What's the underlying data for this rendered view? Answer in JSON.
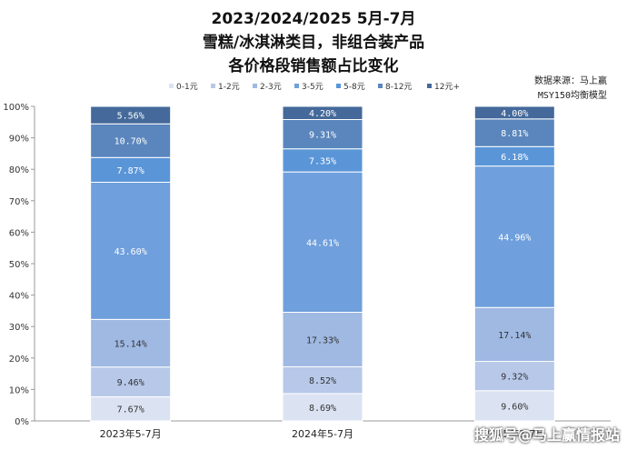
{
  "chart_data": {
    "type": "bar",
    "stacked": true,
    "title_lines": [
      "2023/2024/2025 5月-7月",
      "雪糕/冰淇淋类目，非组合装产品",
      "各价格段销售额占比变化"
    ],
    "source_lines": [
      "数据来源：马上赢",
      "MSY150均衡模型"
    ],
    "categories": [
      "2023年5-7月",
      "2024年5-7月",
      "2025年5-7月"
    ],
    "ylim": [
      0,
      100
    ],
    "yticks": [
      "0%",
      "10%",
      "20%",
      "30%",
      "40%",
      "50%",
      "60%",
      "70%",
      "80%",
      "90%",
      "100%"
    ],
    "legend_position": "top",
    "grid": false,
    "series": [
      {
        "name": "0-1元",
        "color": "#dbe3f3",
        "values": [
          7.67,
          8.69,
          9.6
        ],
        "labels": [
          "7.67%",
          "8.69%",
          "9.60%"
        ]
      },
      {
        "name": "1-2元",
        "color": "#b7c8e9",
        "values": [
          9.46,
          8.52,
          9.32
        ],
        "labels": [
          "9.46%",
          "8.52%",
          "9.32%"
        ]
      },
      {
        "name": "2-3元",
        "color": "#9fb9e3",
        "values": [
          15.14,
          17.33,
          17.14
        ],
        "labels": [
          "15.14%",
          "17.33%",
          "17.14%"
        ]
      },
      {
        "name": "3-5元",
        "color": "#6f9fdc",
        "values": [
          43.6,
          44.61,
          44.96
        ],
        "labels": [
          "43.60%",
          "44.61%",
          "44.96%"
        ]
      },
      {
        "name": "5-8元",
        "color": "#5a95d8",
        "values": [
          7.87,
          7.35,
          6.18
        ],
        "labels": [
          "7.87%",
          "7.35%",
          "6.18%"
        ]
      },
      {
        "name": "8-12元",
        "color": "#5a86bd",
        "values": [
          10.7,
          9.31,
          8.81
        ],
        "labels": [
          "10.70%",
          "9.31%",
          "8.81%"
        ]
      },
      {
        "name": "12元+",
        "color": "#44699a",
        "values": [
          5.56,
          4.2,
          4.0
        ],
        "labels": [
          "5.56%",
          "4.20%",
          "4.00%"
        ]
      }
    ]
  },
  "watermark": "搜狐号@马上赢情报站"
}
